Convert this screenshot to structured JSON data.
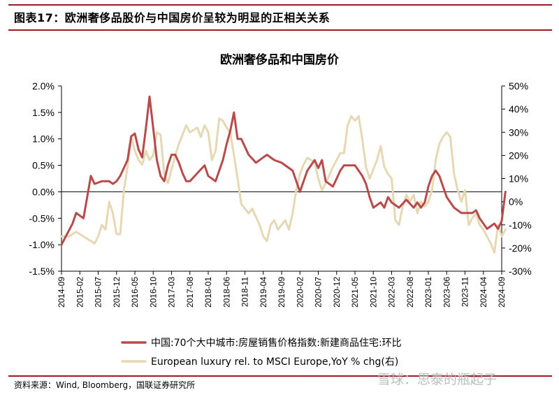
{
  "figure": {
    "title": "图表17：欧洲奢侈品股价与中国房价呈较为明显的正相关关系",
    "source": "资料来源：Wind, Bloomberg，国联证券研究所",
    "watermark": "雪球：思泰的瓶起子"
  },
  "chart_data": {
    "type": "line",
    "title": "欧洲奢侈品和中国房价",
    "x_tick_labels": [
      "2014-09",
      "2015-02",
      "2015-07",
      "2015-12",
      "2016-05",
      "2016-10",
      "2017-03",
      "2017-08",
      "2018-01",
      "2018-06",
      "2018-11",
      "2019-04",
      "2019-09",
      "2020-02",
      "2020-07",
      "2020-12",
      "2021-05",
      "2021-10",
      "2022-03",
      "2022-08",
      "2023-01",
      "2023-06",
      "2023-11",
      "2024-04",
      "2024-09"
    ],
    "x_range": [
      "2014-09",
      "2024-09"
    ],
    "y_left": {
      "ylim": [
        -1.5,
        2.0
      ],
      "ticks": [
        "-1.5%",
        "-1.0%",
        "-0.5%",
        "0.0%",
        "0.5%",
        "1.0%",
        "1.5%",
        "2.0%"
      ]
    },
    "y_right": {
      "ylim": [
        -30,
        50
      ],
      "ticks": [
        "-30%",
        "-20%",
        "-10%",
        "0%",
        "10%",
        "20%",
        "30%",
        "40%",
        "50%"
      ]
    },
    "legend_position": "bottom",
    "series": [
      {
        "name": "中国:70个大中城市:房屋销售价格指数:新建商品住宅:环比",
        "axis": "left",
        "color": "#b94a4a",
        "points": [
          [
            "2014-09",
            -1.0
          ],
          [
            "2014-12",
            -0.6
          ],
          [
            "2015-01",
            -0.4
          ],
          [
            "2015-03",
            -0.5
          ],
          [
            "2015-05",
            0.3
          ],
          [
            "2015-06",
            0.15
          ],
          [
            "2015-08",
            0.2
          ],
          [
            "2015-10",
            0.2
          ],
          [
            "2015-11",
            0.15
          ],
          [
            "2015-12",
            0.2
          ],
          [
            "2016-01",
            0.3
          ],
          [
            "2016-03",
            0.6
          ],
          [
            "2016-04",
            1.05
          ],
          [
            "2016-05",
            1.1
          ],
          [
            "2016-06",
            0.8
          ],
          [
            "2016-07",
            0.65
          ],
          [
            "2016-08",
            1.2
          ],
          [
            "2016-09",
            1.8
          ],
          [
            "2016-10",
            1.2
          ],
          [
            "2016-11",
            0.6
          ],
          [
            "2016-12",
            0.3
          ],
          [
            "2017-01",
            0.2
          ],
          [
            "2017-02",
            0.5
          ],
          [
            "2017-03",
            0.7
          ],
          [
            "2017-04",
            0.7
          ],
          [
            "2017-05",
            0.55
          ],
          [
            "2017-06",
            0.35
          ],
          [
            "2017-07",
            0.2
          ],
          [
            "2017-08",
            0.2
          ],
          [
            "2017-10",
            0.35
          ],
          [
            "2017-12",
            0.5
          ],
          [
            "2018-01",
            0.3
          ],
          [
            "2018-03",
            0.2
          ],
          [
            "2018-05",
            0.6
          ],
          [
            "2018-06",
            0.9
          ],
          [
            "2018-07",
            1.15
          ],
          [
            "2018-08",
            1.5
          ],
          [
            "2018-09",
            1.0
          ],
          [
            "2018-10",
            1.0
          ],
          [
            "2018-12",
            0.7
          ],
          [
            "2019-02",
            0.55
          ],
          [
            "2019-04",
            0.65
          ],
          [
            "2019-05",
            0.7
          ],
          [
            "2019-07",
            0.6
          ],
          [
            "2019-09",
            0.55
          ],
          [
            "2019-10",
            0.5
          ],
          [
            "2019-12",
            0.4
          ],
          [
            "2020-02",
            0.0
          ],
          [
            "2020-03",
            0.2
          ],
          [
            "2020-04",
            0.4
          ],
          [
            "2020-05",
            0.5
          ],
          [
            "2020-06",
            0.6
          ],
          [
            "2020-07",
            0.45
          ],
          [
            "2020-08",
            0.6
          ],
          [
            "2020-09",
            0.2
          ],
          [
            "2020-10",
            0.15
          ],
          [
            "2020-11",
            0.1
          ],
          [
            "2021-01",
            0.4
          ],
          [
            "2021-02",
            0.5
          ],
          [
            "2021-05",
            0.5
          ],
          [
            "2021-06",
            0.4
          ],
          [
            "2021-07",
            0.3
          ],
          [
            "2021-08",
            0.15
          ],
          [
            "2021-09",
            -0.1
          ],
          [
            "2021-10",
            -0.3
          ],
          [
            "2021-12",
            -0.2
          ],
          [
            "2022-01",
            -0.3
          ],
          [
            "2022-02",
            -0.1
          ],
          [
            "2022-03",
            -0.2
          ],
          [
            "2022-05",
            -0.3
          ],
          [
            "2022-07",
            -0.15
          ],
          [
            "2022-09",
            -0.3
          ],
          [
            "2022-10",
            -0.2
          ],
          [
            "2022-11",
            -0.3
          ],
          [
            "2022-12",
            -0.2
          ],
          [
            "2023-01",
            0.1
          ],
          [
            "2023-02",
            0.3
          ],
          [
            "2023-03",
            0.4
          ],
          [
            "2023-04",
            0.3
          ],
          [
            "2023-05",
            0.1
          ],
          [
            "2023-06",
            -0.1
          ],
          [
            "2023-08",
            -0.3
          ],
          [
            "2023-10",
            -0.4
          ],
          [
            "2023-12",
            -0.4
          ],
          [
            "2024-01",
            -0.4
          ],
          [
            "2024-02",
            -0.35
          ],
          [
            "2024-03",
            -0.5
          ],
          [
            "2024-05",
            -0.7
          ],
          [
            "2024-06",
            -0.65
          ],
          [
            "2024-07",
            -0.6
          ],
          [
            "2024-08",
            -0.7
          ],
          [
            "2024-09",
            -0.55
          ],
          [
            "2024-10",
            0.0
          ]
        ]
      },
      {
        "name": "European luxury rel. to MSCI Europe,YoY % chg(右)",
        "axis": "right",
        "color": "#e6d8b3",
        "points": [
          [
            "2014-09",
            -15
          ],
          [
            "2014-11",
            -15
          ],
          [
            "2015-01",
            -13
          ],
          [
            "2015-03",
            -15
          ],
          [
            "2015-05",
            -17
          ],
          [
            "2015-06",
            -18
          ],
          [
            "2015-07",
            -15
          ],
          [
            "2015-08",
            -10
          ],
          [
            "2015-09",
            -12
          ],
          [
            "2015-10",
            0
          ],
          [
            "2015-11",
            -5
          ],
          [
            "2015-12",
            -14
          ],
          [
            "2016-01",
            -14
          ],
          [
            "2016-02",
            5
          ],
          [
            "2016-03",
            15
          ],
          [
            "2016-04",
            28
          ],
          [
            "2016-05",
            22
          ],
          [
            "2016-06",
            18
          ],
          [
            "2016-07",
            16
          ],
          [
            "2016-08",
            22
          ],
          [
            "2016-09",
            18
          ],
          [
            "2016-10",
            20
          ],
          [
            "2016-11",
            30
          ],
          [
            "2016-12",
            29
          ],
          [
            "2017-01",
            12
          ],
          [
            "2017-02",
            8
          ],
          [
            "2017-04",
            20
          ],
          [
            "2017-05",
            25
          ],
          [
            "2017-07",
            33
          ],
          [
            "2017-08",
            30
          ],
          [
            "2017-10",
            32
          ],
          [
            "2017-11",
            28
          ],
          [
            "2017-12",
            33
          ],
          [
            "2018-01",
            30
          ],
          [
            "2018-02",
            18
          ],
          [
            "2018-03",
            22
          ],
          [
            "2018-04",
            36
          ],
          [
            "2018-05",
            35
          ],
          [
            "2018-06",
            32
          ],
          [
            "2018-07",
            30
          ],
          [
            "2018-08",
            20
          ],
          [
            "2018-09",
            10
          ],
          [
            "2018-10",
            -1
          ],
          [
            "2018-11",
            -3
          ],
          [
            "2018-12",
            -5
          ],
          [
            "2019-01",
            -3
          ],
          [
            "2019-03",
            -10
          ],
          [
            "2019-04",
            -15
          ],
          [
            "2019-05",
            -17
          ],
          [
            "2019-06",
            -10
          ],
          [
            "2019-07",
            -8
          ],
          [
            "2019-08",
            -12
          ],
          [
            "2019-09",
            -10
          ],
          [
            "2019-10",
            -8
          ],
          [
            "2019-11",
            -12
          ],
          [
            "2019-12",
            -5
          ],
          [
            "2020-01",
            5
          ],
          [
            "2020-02",
            12
          ],
          [
            "2020-03",
            16
          ],
          [
            "2020-04",
            19
          ],
          [
            "2020-05",
            18
          ],
          [
            "2020-06",
            17
          ],
          [
            "2020-07",
            10
          ],
          [
            "2020-08",
            5
          ],
          [
            "2020-09",
            8
          ],
          [
            "2020-11",
            15
          ],
          [
            "2020-12",
            18
          ],
          [
            "2021-01",
            21
          ],
          [
            "2021-02",
            21
          ],
          [
            "2021-03",
            33
          ],
          [
            "2021-04",
            37
          ],
          [
            "2021-05",
            35
          ],
          [
            "2021-06",
            37
          ],
          [
            "2021-07",
            27
          ],
          [
            "2021-08",
            15
          ],
          [
            "2021-09",
            10
          ],
          [
            "2021-10",
            14
          ],
          [
            "2021-11",
            18
          ],
          [
            "2021-12",
            24
          ],
          [
            "2022-01",
            15
          ],
          [
            "2022-02",
            12
          ],
          [
            "2022-03",
            10
          ],
          [
            "2022-04",
            -8
          ],
          [
            "2022-05",
            -10
          ],
          [
            "2022-06",
            -2
          ],
          [
            "2022-07",
            3
          ],
          [
            "2022-08",
            0
          ],
          [
            "2022-09",
            3
          ],
          [
            "2022-10",
            -5
          ],
          [
            "2022-11",
            0
          ],
          [
            "2022-12",
            -2
          ],
          [
            "2023-01",
            0
          ],
          [
            "2023-02",
            5
          ],
          [
            "2023-03",
            18
          ],
          [
            "2023-04",
            25
          ],
          [
            "2023-05",
            28
          ],
          [
            "2023-06",
            30
          ],
          [
            "2023-07",
            28
          ],
          [
            "2023-08",
            12
          ],
          [
            "2023-09",
            5
          ],
          [
            "2023-10",
            0
          ],
          [
            "2023-11",
            5
          ],
          [
            "2023-12",
            -10
          ],
          [
            "2024-01",
            -7
          ],
          [
            "2024-02",
            -5
          ],
          [
            "2024-03",
            -10
          ],
          [
            "2024-04",
            -12
          ],
          [
            "2024-05",
            -15
          ],
          [
            "2024-06",
            -18
          ],
          [
            "2024-07",
            -22
          ],
          [
            "2024-08",
            -10
          ],
          [
            "2024-09",
            -15
          ],
          [
            "2024-10",
            -12
          ]
        ]
      }
    ]
  }
}
